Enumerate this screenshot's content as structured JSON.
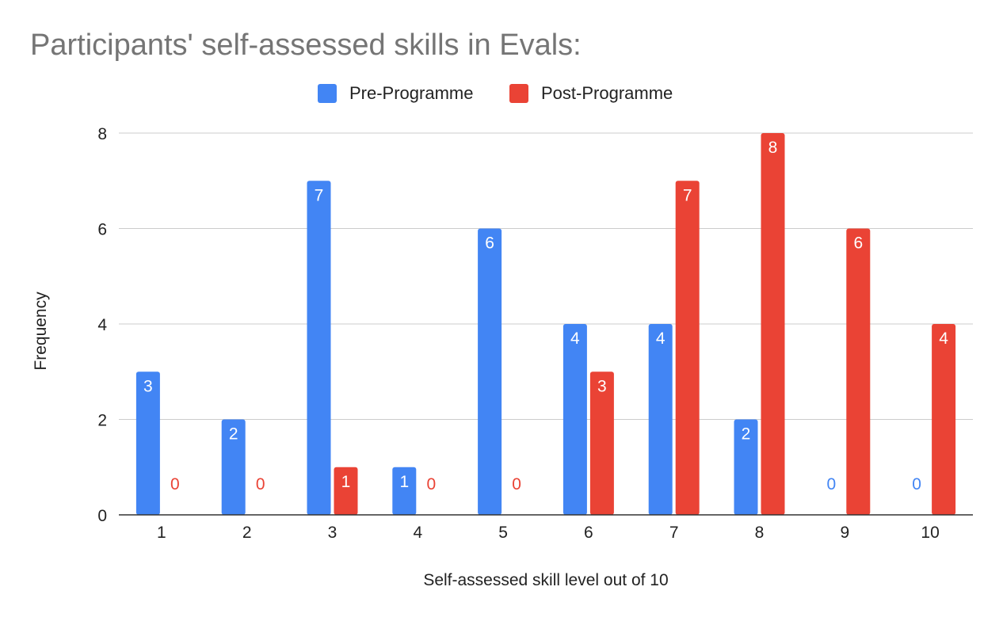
{
  "chart_data": {
    "type": "bar",
    "title": "Participants' self-assessed skills in Evals:",
    "xlabel": "Self-assessed skill level out of 10",
    "ylabel": "Frequency",
    "ylim": [
      0,
      8
    ],
    "yticks": [
      "0",
      "2",
      "4",
      "6",
      "8"
    ],
    "grid": true,
    "legend_position": "top-center",
    "categories": [
      "1",
      "2",
      "3",
      "4",
      "5",
      "6",
      "7",
      "8",
      "9",
      "10"
    ],
    "series": [
      {
        "name": "Pre-Programme",
        "color": "#4285f4",
        "values": [
          3,
          2,
          7,
          1,
          6,
          4,
          4,
          2,
          0,
          0
        ]
      },
      {
        "name": "Post-Programme",
        "color": "#ea4335",
        "values": [
          0,
          0,
          1,
          0,
          0,
          3,
          7,
          8,
          6,
          4
        ]
      }
    ]
  }
}
